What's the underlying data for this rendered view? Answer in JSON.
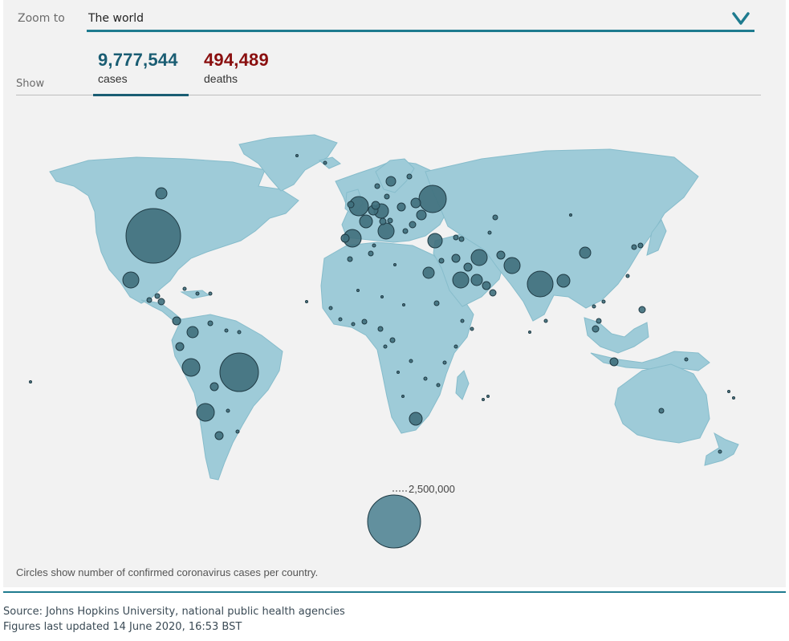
{
  "zoom": {
    "label": "Zoom to",
    "selected": "The world"
  },
  "show": {
    "label": "Show",
    "tabs": [
      {
        "value": "9,777,544",
        "label": "cases",
        "active": true
      },
      {
        "value": "494,489",
        "label": "deaths",
        "active": false
      }
    ]
  },
  "legend": {
    "reference_value": "2,500,000"
  },
  "note": "Circles show number of confirmed coronavirus cases per country.",
  "footer": {
    "source": "Source: Johns Hopkins University, national public health agencies",
    "updated": "Figures last updated 14 June 2020, 16:53 BST"
  },
  "colors": {
    "land": "#9ecbd8",
    "bubble": "#3f6f7c",
    "accent": "#1e7b8f",
    "cases": "#1a5d73",
    "deaths": "#8a0f0f"
  }
}
